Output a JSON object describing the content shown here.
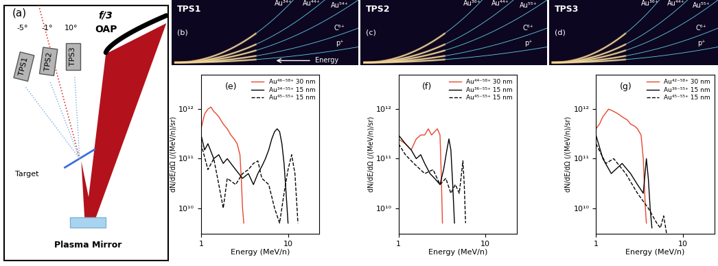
{
  "schematic": {
    "panel_label": "(a)",
    "oap_label": [
      "f/3",
      "OAP"
    ],
    "spectrometers": [
      {
        "name": "TPS1",
        "angle": "-5°"
      },
      {
        "name": "TPS2",
        "angle": "-1°"
      },
      {
        "name": "TPS3",
        "angle": "10°"
      }
    ],
    "target_label": "Target",
    "mirror_label": "Plasma Mirror"
  },
  "detector_images": [
    {
      "panel_label": "(b)",
      "name": "TPS1",
      "traces": [
        "Au³⁴⁺",
        "Au⁴⁴⁺",
        "Au⁵⁴⁺",
        "C⁶⁺",
        "p⁺"
      ],
      "energy_arrow": "Energy"
    },
    {
      "panel_label": "(c)",
      "name": "TPS2",
      "traces": [
        "Au³⁶⁺",
        "Au⁴⁴⁺",
        "Au⁵⁵⁺",
        "C⁶⁺",
        "p⁺"
      ]
    },
    {
      "panel_label": "(d)",
      "name": "TPS3",
      "traces": [
        "Au³⁶⁺",
        "Au⁴⁴⁺",
        "Au⁵⁵⁺",
        "C⁶⁺",
        "p⁺"
      ]
    }
  ],
  "chart_data": [
    {
      "type": "line",
      "panel_label": "(e)",
      "x_label": "Energy (MeV/n)",
      "y_label": "dN/dE/dΩ (/(MeV/n)/sr)",
      "log": true,
      "legend": "upper right",
      "xlim": [
        1,
        23
      ],
      "ylim": [
        3000000000.0,
        5000000000000.0
      ],
      "xticks": [
        1,
        10
      ],
      "yticks": [
        {
          "value": 10000000000.0,
          "label": "10¹⁰"
        },
        {
          "value": 100000000000.0,
          "label": "10¹¹"
        },
        {
          "value": 1000000000000.0,
          "label": "10¹²"
        }
      ],
      "series": [
        {
          "name": "Au⁴⁶⁻⁵⁸⁺ 30 nm",
          "color": "#e8452c",
          "line_style": "solid",
          "x": [
            1.0,
            1.1,
            1.2,
            1.3,
            1.4,
            1.5,
            1.6,
            1.8,
            2.0,
            2.2,
            2.4,
            2.6,
            2.8,
            2.9,
            3.0,
            3.1
          ],
          "values": [
            400000000000.0,
            800000000000.0,
            1000000000000.0,
            1100000000000.0,
            900000000000.0,
            800000000000.0,
            700000000000.0,
            500000000000.0,
            400000000000.0,
            300000000000.0,
            250000000000.0,
            200000000000.0,
            120000000000.0,
            40000000000.0,
            10000000000.0,
            5000000000.0
          ]
        },
        {
          "name": "Au³⁴⁻⁵⁵⁺ 15 nm",
          "color": "#000000",
          "line_style": "solid",
          "x": [
            1.0,
            1.1,
            1.2,
            1.4,
            1.6,
            1.8,
            2.0,
            2.5,
            3.0,
            3.5,
            4.0,
            4.5,
            5.0,
            5.5,
            6.0,
            6.5,
            7.0,
            7.5,
            8.0,
            8.5,
            9.0,
            9.5,
            10.0
          ],
          "values": [
            300000000000.0,
            150000000000.0,
            200000000000.0,
            100000000000.0,
            120000000000.0,
            80000000000.0,
            100000000000.0,
            60000000000.0,
            40000000000.0,
            50000000000.0,
            30000000000.0,
            50000000000.0,
            70000000000.0,
            100000000000.0,
            150000000000.0,
            250000000000.0,
            350000000000.0,
            400000000000.0,
            350000000000.0,
            200000000000.0,
            80000000000.0,
            20000000000.0,
            5000000000.0
          ]
        },
        {
          "name": "Au⁴⁵⁻⁵⁵⁺ 15 nm",
          "color": "#000000",
          "line_style": "dashed",
          "x": [
            1.0,
            1.2,
            1.4,
            1.6,
            1.8,
            2.0,
            2.5,
            3.0,
            3.5,
            4.0,
            4.5,
            5.0,
            6.0,
            7.0,
            8.0,
            9.0,
            10.0,
            11.0,
            12.0,
            13.0
          ],
          "values": [
            200000000000.0,
            60000000000.0,
            100000000000.0,
            30000000000.0,
            10000000000.0,
            40000000000.0,
            30000000000.0,
            50000000000.0,
            60000000000.0,
            80000000000.0,
            90000000000.0,
            40000000000.0,
            30000000000.0,
            10000000000.0,
            5000000000.0,
            20000000000.0,
            60000000000.0,
            120000000000.0,
            50000000000.0,
            5000000000.0
          ]
        }
      ]
    },
    {
      "type": "line",
      "panel_label": "(f)",
      "x_label": "Energy (MeV/n)",
      "y_label": "dN/dE/dΩ (/(MeV/n)/sr)",
      "log": true,
      "legend": "upper right",
      "xlim": [
        1,
        23
      ],
      "ylim": [
        3000000000.0,
        5000000000000.0
      ],
      "xticks": [
        1,
        10
      ],
      "yticks": [
        {
          "value": 10000000000.0,
          "label": "10¹⁰"
        },
        {
          "value": 100000000000.0,
          "label": "10¹¹"
        },
        {
          "value": 1000000000000.0,
          "label": "10¹²"
        }
      ],
      "series": [
        {
          "name": "Au⁴⁴⁻⁵⁸⁺ 30 nm",
          "color": "#e8452c",
          "line_style": "solid",
          "x": [
            1.0,
            1.2,
            1.4,
            1.6,
            1.8,
            2.0,
            2.2,
            2.4,
            2.6,
            2.8,
            3.0,
            3.1,
            3.2
          ],
          "values": [
            250000000000.0,
            200000000000.0,
            150000000000.0,
            250000000000.0,
            300000000000.0,
            300000000000.0,
            400000000000.0,
            300000000000.0,
            350000000000.0,
            400000000000.0,
            300000000000.0,
            50000000000.0,
            5000000000.0
          ]
        },
        {
          "name": "Au³⁶⁻⁵⁵⁺ 15 nm",
          "color": "#000000",
          "line_style": "solid",
          "x": [
            1.0,
            1.2,
            1.4,
            1.6,
            1.8,
            2.0,
            2.3,
            2.6,
            3.0,
            3.3,
            3.6,
            3.8,
            4.0,
            4.2,
            4.4
          ],
          "values": [
            300000000000.0,
            200000000000.0,
            150000000000.0,
            100000000000.0,
            120000000000.0,
            80000000000.0,
            50000000000.0,
            40000000000.0,
            30000000000.0,
            60000000000.0,
            150000000000.0,
            250000000000.0,
            150000000000.0,
            30000000000.0,
            5000000000.0
          ]
        },
        {
          "name": "Au⁴⁵⁻⁵⁵⁺ 15 nm",
          "color": "#000000",
          "line_style": "dashed",
          "x": [
            1.0,
            1.2,
            1.5,
            2.0,
            2.5,
            3.0,
            3.5,
            4.0,
            4.5,
            5.0,
            5.3,
            5.5,
            5.7,
            5.9
          ],
          "values": [
            200000000000.0,
            120000000000.0,
            80000000000.0,
            50000000000.0,
            60000000000.0,
            30000000000.0,
            40000000000.0,
            20000000000.0,
            30000000000.0,
            20000000000.0,
            50000000000.0,
            90000000000.0,
            30000000000.0,
            5000000000.0
          ]
        }
      ]
    },
    {
      "type": "line",
      "panel_label": "(g)",
      "x_label": "Energy (MeV/n)",
      "y_label": "dN/dE/dΩ (/(MeV/n)/sr)",
      "log": true,
      "legend": "upper right",
      "xlim": [
        1,
        23
      ],
      "ylim": [
        3000000000.0,
        5000000000000.0
      ],
      "xticks": [
        1,
        10
      ],
      "yticks": [
        {
          "value": 10000000000.0,
          "label": "10¹⁰"
        },
        {
          "value": 100000000000.0,
          "label": "10¹¹"
        },
        {
          "value": 1000000000000.0,
          "label": "10¹²"
        }
      ],
      "series": [
        {
          "name": "Au⁴²⁻⁵⁸⁺ 30 nm",
          "color": "#e8452c",
          "line_style": "solid",
          "x": [
            1.0,
            1.1,
            1.2,
            1.4,
            1.6,
            1.8,
            2.0,
            2.3,
            2.5,
            2.8,
            3.0,
            3.3,
            3.5,
            3.7,
            3.8
          ],
          "values": [
            400000000000.0,
            500000000000.0,
            700000000000.0,
            1000000000000.0,
            900000000000.0,
            800000000000.0,
            700000000000.0,
            600000000000.0,
            500000000000.0,
            450000000000.0,
            400000000000.0,
            300000000000.0,
            100000000000.0,
            10000000000.0,
            5000000000.0
          ]
        },
        {
          "name": "Au³⁶⁻⁵⁵⁺ 15 nm",
          "color": "#000000",
          "line_style": "solid",
          "x": [
            1.0,
            1.2,
            1.5,
            2.0,
            2.5,
            3.0,
            3.5,
            3.8,
            4.0,
            4.2,
            4.4
          ],
          "values": [
            300000000000.0,
            100000000000.0,
            50000000000.0,
            80000000000.0,
            50000000000.0,
            30000000000.0,
            20000000000.0,
            100000000000.0,
            40000000000.0,
            10000000000.0,
            4000000000.0
          ]
        },
        {
          "name": "Au⁴⁵⁻⁵⁵⁺ 15 nm",
          "color": "#000000",
          "line_style": "dashed",
          "x": [
            1.0,
            1.3,
            1.6,
            2.2,
            3.0,
            4.0,
            5.0,
            5.5,
            6.0,
            6.5
          ],
          "values": [
            200000000000.0,
            80000000000.0,
            100000000000.0,
            50000000000.0,
            20000000000.0,
            10000000000.0,
            5000000000.0,
            4000000000.0,
            7000000000.0,
            3000000000.0
          ]
        }
      ]
    }
  ]
}
